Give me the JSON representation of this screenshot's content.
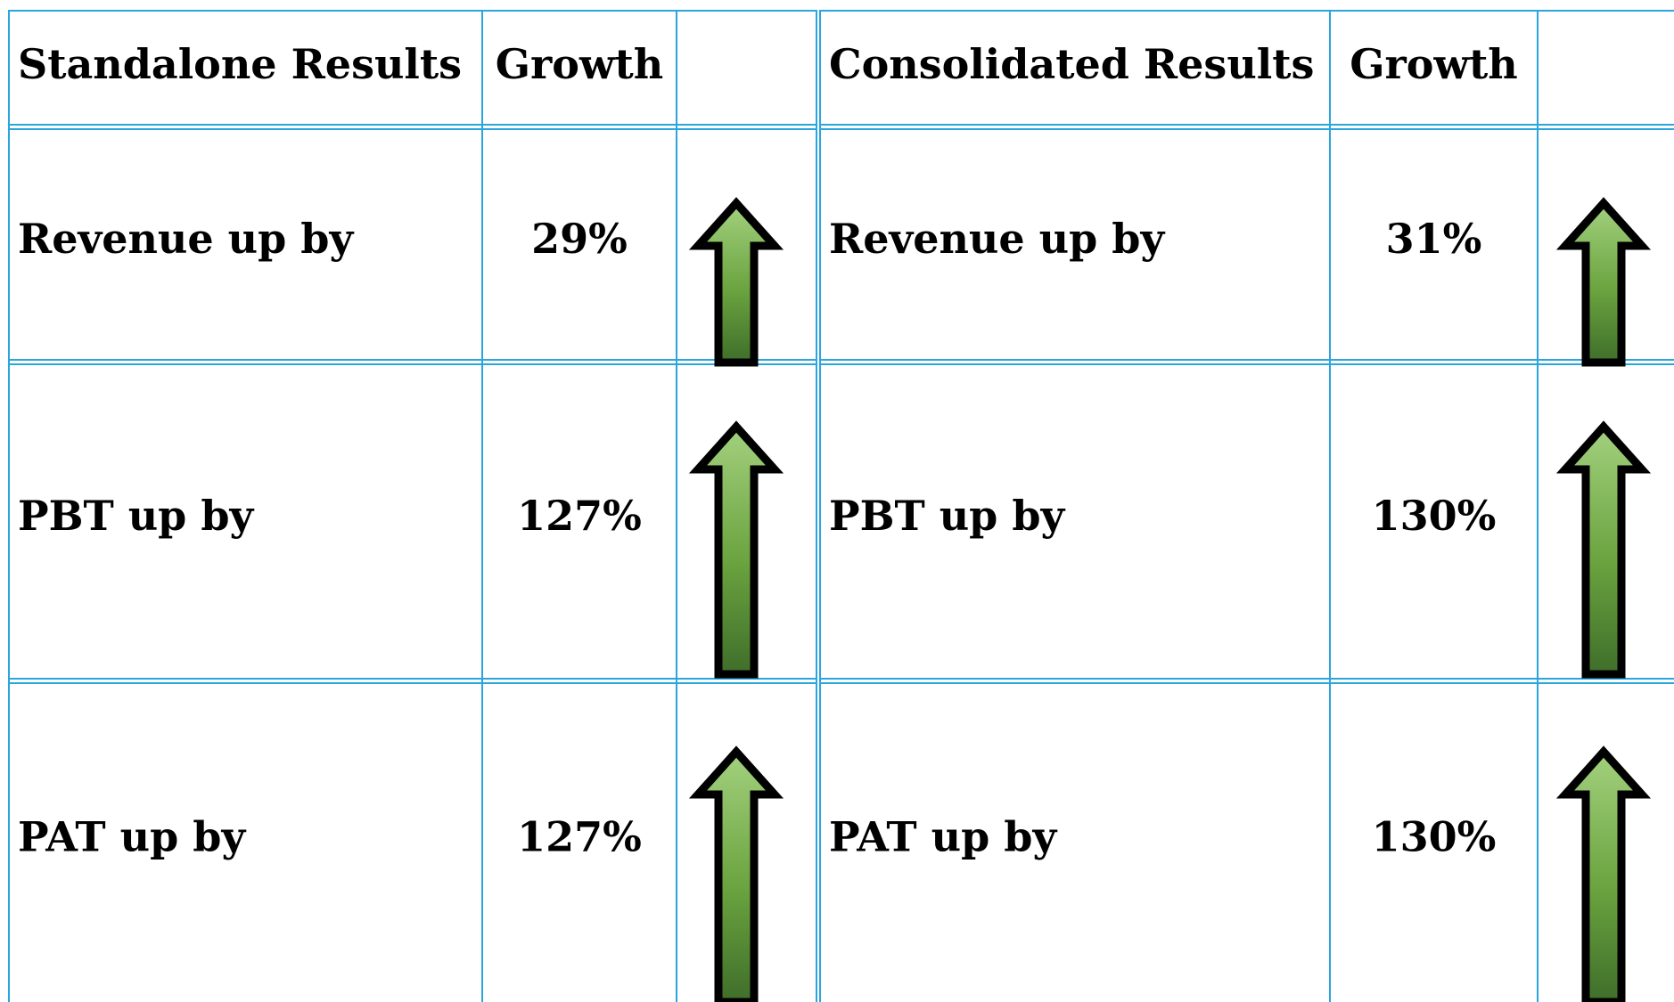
{
  "tables": [
    {
      "header": [
        "Standalone Results",
        "Growth"
      ],
      "rows": [
        [
          "Revenue up by",
          "29%"
        ],
        [
          "PBT up by",
          "127%"
        ],
        [
          "PAT up by",
          "127%"
        ]
      ]
    },
    {
      "header": [
        "Consolidated Results",
        "Growth"
      ],
      "rows": [
        [
          "Revenue up by",
          "31%"
        ],
        [
          "PBT up by",
          "130%"
        ],
        [
          "PAT up by",
          "130%"
        ]
      ]
    }
  ]
}
